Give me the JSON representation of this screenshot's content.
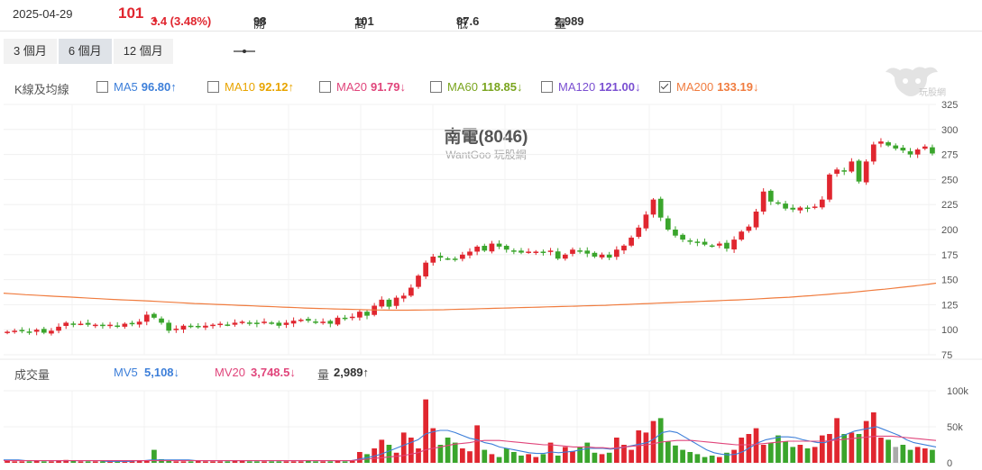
{
  "quote": {
    "date": "2025-04-29",
    "price": "101",
    "change": "3.4 (3.48%)",
    "open_label": "開",
    "open": "98",
    "high_label": "高",
    "high": "101",
    "low_label": "低",
    "low": "97.6",
    "vol_label": "量",
    "volume": "2,989"
  },
  "ranges": [
    "3 個月",
    "6 個月",
    "12 個月"
  ],
  "active_range": "6 個月",
  "ma_panel": {
    "title": "K線及均線",
    "items": [
      {
        "name": "MA5",
        "value": "96.80↑",
        "color": "#3d7fd9",
        "checked": false
      },
      {
        "name": "MA10",
        "value": "92.12↑",
        "color": "#e8a400",
        "checked": false
      },
      {
        "name": "MA20",
        "value": "91.79↓",
        "color": "#e0457b",
        "checked": false
      },
      {
        "name": "MA60",
        "value": "118.85↓",
        "color": "#7aa51f",
        "checked": false
      },
      {
        "name": "MA120",
        "value": "121.00↓",
        "color": "#7a4fd1",
        "checked": false
      },
      {
        "name": "MA200",
        "value": "133.19↓",
        "color": "#f07c3f",
        "checked": true
      }
    ]
  },
  "volume_panel": {
    "title": "成交量",
    "mv5_label": "MV5",
    "mv5": "5,108↓",
    "mv20_label": "MV20",
    "mv20": "3,748.5↓",
    "vol_label": "量",
    "vol": "2,989↑"
  },
  "watermark_text": "玩股網",
  "chart_data": [
    {
      "type": "candlestick",
      "title": "南電(8046)",
      "subtitle": "WantGoo 玩股網",
      "y_ticks": [
        75,
        100,
        125,
        150,
        175,
        200,
        225,
        250,
        275,
        300,
        325
      ],
      "ylim": [
        75,
        325
      ],
      "up_color": "#e0262f",
      "down_color": "#3aa52c",
      "ma200_color": "#f07c3f",
      "candles_close": [
        98,
        99,
        99,
        98,
        100,
        97,
        99,
        103,
        107,
        106,
        106,
        105,
        105,
        104,
        105,
        103,
        106,
        106,
        108,
        115,
        112,
        107,
        99,
        101,
        104,
        103,
        103,
        104,
        105,
        106,
        105,
        107,
        108,
        107,
        106,
        108,
        107,
        104,
        107,
        109,
        110,
        109,
        108,
        108,
        106,
        112,
        111,
        113,
        118,
        114,
        124,
        130,
        123,
        132,
        134,
        142,
        154,
        167,
        173,
        172,
        171,
        170,
        175,
        178,
        183,
        179,
        186,
        183,
        180,
        179,
        177,
        178,
        178,
        177,
        179,
        171,
        175,
        180,
        179,
        176,
        173,
        175,
        172,
        180,
        184,
        192,
        202,
        215,
        230,
        212,
        200,
        194,
        190,
        188,
        187,
        185,
        184,
        186,
        181,
        190,
        198,
        203,
        218,
        238,
        228,
        226,
        221,
        220,
        222,
        221,
        223,
        230,
        255,
        260,
        258,
        268,
        248,
        268,
        285,
        288,
        284,
        281,
        279,
        275,
        280,
        283,
        276
      ],
      "ma200": [
        136.5,
        136,
        135.5,
        135,
        134.6,
        134.2,
        133.8,
        133.4,
        133,
        132.6,
        132.2,
        131.8,
        131.4,
        131,
        130.6,
        130.2,
        129.9,
        129.6,
        129.3,
        129,
        128.6,
        128.2,
        127.8,
        127.4,
        127,
        126.6,
        126.2,
        125.9,
        125.6,
        125.3,
        125,
        124.7,
        124.4,
        124.1,
        123.8,
        123.5,
        123.2,
        122.9,
        122.6,
        122.3,
        122,
        121.7,
        121.4,
        121.2,
        121,
        120.8,
        120.6,
        120.4,
        120.2,
        120,
        119.8,
        119.7,
        119.6,
        119.5,
        119.5,
        119.5,
        119.6,
        119.7,
        119.8,
        119.9,
        120,
        120.2,
        120.4,
        120.6,
        120.8,
        121,
        121.2,
        121.4,
        121.6,
        121.8,
        122,
        122.2,
        122.4,
        122.6,
        122.8,
        123,
        123.2,
        123.4,
        123.6,
        123.8,
        124,
        124.2,
        124.4,
        124.7,
        125,
        125.3,
        125.6,
        125.9,
        126.2,
        126.5,
        126.8,
        127.1,
        127.4,
        127.7,
        128,
        128.3,
        128.6,
        128.9,
        129.2,
        129.5,
        129.8,
        130.1,
        130.5,
        130.9,
        131.3,
        131.7,
        132.1,
        132.5,
        133,
        133.5,
        134,
        134.6,
        135.2,
        135.8,
        136.4,
        137,
        137.7,
        138.4,
        139.1,
        139.8,
        140.5,
        141.3,
        142.1,
        142.9,
        143.7,
        144.5,
        145.5,
        146.5
      ],
      "volume_ticks": [
        "100k",
        "50k",
        "0"
      ],
      "volume": [
        3,
        2,
        2,
        2,
        3,
        2,
        2,
        3,
        4,
        3,
        2,
        2,
        2,
        2,
        2,
        2,
        2,
        2,
        3,
        3,
        18,
        5,
        3,
        2,
        2,
        2,
        3,
        2,
        2,
        2,
        2,
        3,
        3,
        2,
        2,
        2,
        2,
        2,
        2,
        2,
        2,
        3,
        2,
        2,
        2,
        3,
        2,
        3,
        15,
        12,
        20,
        32,
        25,
        14,
        42,
        35,
        20,
        88,
        48,
        25,
        35,
        28,
        20,
        16,
        52,
        18,
        12,
        8,
        20,
        15,
        10,
        12,
        8,
        12,
        28,
        10,
        22,
        16,
        22,
        28,
        14,
        12,
        14,
        35,
        25,
        18,
        45,
        42,
        58,
        62,
        30,
        24,
        18,
        15,
        12,
        8,
        10,
        8,
        14,
        18,
        35,
        40,
        48,
        25,
        28,
        38,
        30,
        22,
        25,
        20,
        22,
        38,
        40,
        62,
        40,
        42,
        40,
        58,
        70,
        35,
        32,
        22,
        25,
        18,
        22,
        20,
        18
      ],
      "mv": [
        4,
        4,
        4,
        3,
        3,
        3,
        3,
        3,
        3,
        3,
        3,
        3,
        3,
        3,
        2,
        2,
        2,
        2,
        3,
        3,
        4,
        4,
        4,
        4,
        4,
        4,
        3,
        3,
        3,
        3,
        3,
        3,
        3,
        3,
        3,
        3,
        3,
        3,
        3,
        3,
        3,
        3,
        3,
        3,
        3,
        3,
        3,
        3,
        5,
        7,
        9,
        12,
        16,
        20,
        24,
        28,
        32,
        40,
        43,
        45,
        45,
        42,
        38,
        34,
        32,
        28,
        26,
        22,
        20,
        18,
        16,
        14,
        13,
        13,
        15,
        14,
        15,
        16,
        18,
        20,
        20,
        20,
        19,
        20,
        22,
        24,
        26,
        28,
        34,
        42,
        44,
        42,
        36,
        30,
        24,
        18,
        14,
        12,
        11,
        12,
        16,
        22,
        28,
        32,
        34,
        36,
        36,
        35,
        32,
        30,
        28,
        28,
        32,
        36,
        40,
        44,
        46,
        48,
        50,
        46,
        42,
        38,
        32,
        28,
        26,
        24,
        22
      ],
      "mv20": [
        3,
        3,
        3,
        3,
        3,
        3,
        3,
        3,
        3,
        3,
        3,
        3,
        3,
        3,
        3,
        3,
        3,
        3,
        3,
        3,
        3,
        3,
        3,
        3,
        3,
        3,
        3,
        3,
        3,
        3,
        3,
        3,
        3,
        3,
        3,
        3,
        3,
        3,
        3,
        3,
        3,
        3,
        3,
        3,
        3,
        3,
        3,
        3,
        4,
        5,
        6,
        7,
        8,
        9,
        10,
        12,
        14,
        18,
        20,
        22,
        24,
        26,
        27,
        28,
        30,
        31,
        31,
        31,
        30,
        29,
        28,
        27,
        26,
        25,
        25,
        24,
        23,
        22,
        22,
        22,
        21,
        21,
        20,
        21,
        22,
        23,
        24,
        25,
        27,
        29,
        30,
        31,
        31,
        31,
        30,
        29,
        28,
        27,
        26,
        25,
        25,
        25,
        26,
        27,
        28,
        29,
        30,
        30,
        30,
        30,
        30,
        30,
        31,
        32,
        33,
        34,
        35,
        36,
        37,
        37,
        37,
        36,
        35,
        34,
        33,
        32,
        31
      ]
    }
  ]
}
